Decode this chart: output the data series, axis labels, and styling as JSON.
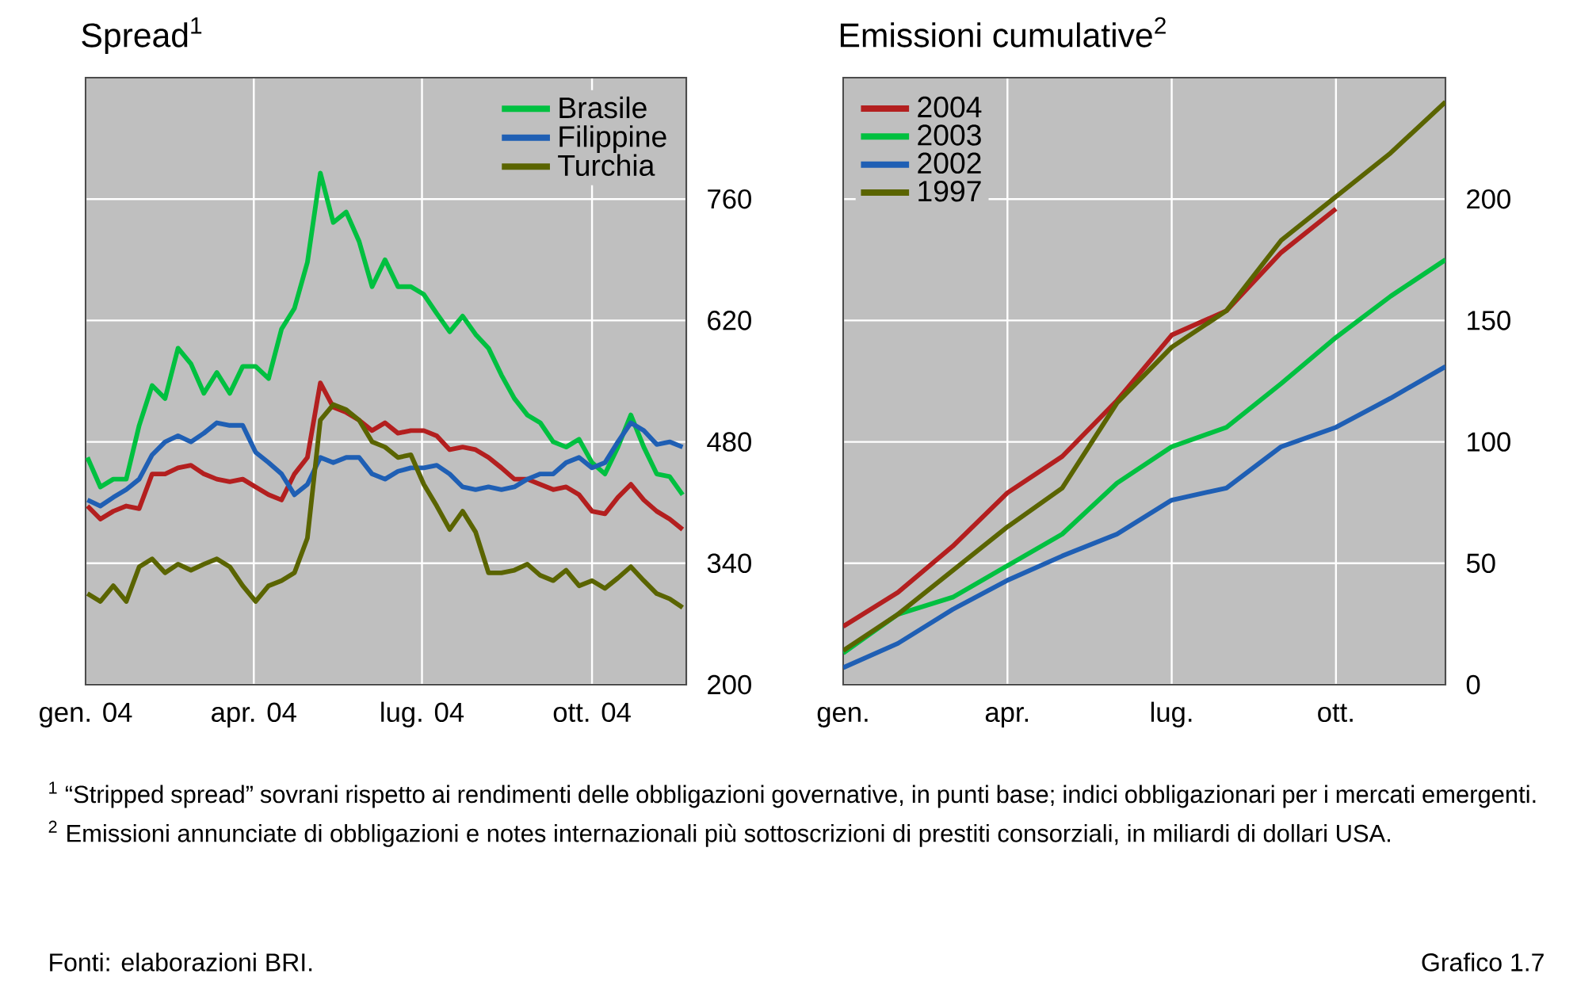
{
  "chart_data": [
    {
      "type": "line",
      "title": "Spread$^{1}$",
      "x": [
        "2004-01-02",
        "2004-01-09",
        "2004-01-16",
        "2004-01-23",
        "2004-01-30",
        "2004-02-06",
        "2004-02-13",
        "2004-02-20",
        "2004-02-27",
        "2004-03-05",
        "2004-03-12",
        "2004-03-19",
        "2004-03-26",
        "2004-04-02",
        "2004-04-09",
        "2004-04-16",
        "2004-04-23",
        "2004-04-30",
        "2004-05-07",
        "2004-05-14",
        "2004-05-21",
        "2004-05-28",
        "2004-06-04",
        "2004-06-11",
        "2004-06-18",
        "2004-06-25",
        "2004-07-02",
        "2004-07-09",
        "2004-07-16",
        "2004-07-23",
        "2004-07-30",
        "2004-08-06",
        "2004-08-13",
        "2004-08-20",
        "2004-08-27",
        "2004-09-03",
        "2004-09-10",
        "2004-09-17",
        "2004-09-24",
        "2004-10-01",
        "2004-10-08",
        "2004-10-15",
        "2004-10-22",
        "2004-10-29",
        "2004-11-05",
        "2004-11-12",
        "2004-11-19"
      ],
      "series": [
        {
          "color": "#b31f1f",
          "values": [
            406,
            391,
            400,
            406,
            403,
            443,
            443,
            450,
            453,
            443,
            437,
            434,
            437,
            428,
            419,
            413,
            443,
            462,
            548,
            520,
            514,
            505,
            493,
            502,
            490,
            493,
            493,
            487,
            471,
            474,
            471,
            462,
            450,
            437,
            437,
            431,
            425,
            428,
            419,
            400,
            397,
            416,
            431,
            413,
            400,
            391,
            379
          ]
        },
        {
          "name": "Brasile",
          "color": "#00c040",
          "values": [
            462,
            428,
            437,
            437,
            499,
            545,
            530,
            588,
            570,
            536,
            560,
            536,
            567,
            567,
            553,
            610,
            634,
            687,
            790,
            733,
            745,
            711,
            659,
            690,
            659,
            659,
            650,
            628,
            607,
            625,
            604,
            588,
            557,
            530,
            511,
            502,
            480,
            474,
            483,
            456,
            443,
            474,
            511,
            474,
            443,
            440,
            419
          ]
        },
        {
          "name": "Filippine",
          "color": "#1f5fb4",
          "values": [
            413,
            406,
            416,
            425,
            437,
            465,
            480,
            487,
            480,
            490,
            502,
            499,
            499,
            468,
            456,
            443,
            419,
            431,
            462,
            456,
            462,
            462,
            443,
            437,
            446,
            450,
            450,
            453,
            443,
            428,
            425,
            428,
            425,
            428,
            437,
            443,
            443,
            456,
            462,
            450,
            456,
            480,
            502,
            493,
            477,
            480,
            474
          ]
        },
        {
          "name": "Turchia",
          "color": "#5a6400",
          "values": [
            305,
            296,
            314,
            296,
            336,
            345,
            329,
            339,
            332,
            339,
            345,
            336,
            314,
            296,
            314,
            320,
            329,
            369,
            505,
            523,
            517,
            505,
            480,
            474,
            462,
            465,
            431,
            406,
            379,
            400,
            376,
            329,
            329,
            332,
            339,
            326,
            320,
            332,
            314,
            320,
            311,
            323,
            336,
            320,
            305,
            299,
            289
          ]
        }
      ],
      "xlim": [
        "2004-01-01",
        "2004-11-21"
      ],
      "xticks": [
        {
          "value": "2004-01-01",
          "label": "gen. 04"
        },
        {
          "value": "2004-04-01",
          "label": "apr. 04"
        },
        {
          "value": "2004-07-01",
          "label": "lug. 04"
        },
        {
          "value": "2004-10-01",
          "label": "ott. 04"
        }
      ],
      "ylim": [
        200,
        900
      ],
      "yticks": [
        200,
        340,
        480,
        620,
        760
      ],
      "grid": true,
      "legend": "top right"
    },
    {
      "type": "line",
      "title": "Emissioni cumulative$^{2}$",
      "categories": [
        "gen.",
        null,
        null,
        "apr.",
        null,
        null,
        "lug.",
        null,
        null,
        "ott.",
        null,
        null
      ],
      "series": [
        {
          "name": "2004",
          "color": "#b31f1f",
          "values": [
            24,
            38,
            57,
            79,
            94,
            117,
            144,
            154,
            178,
            196,
            null,
            null
          ]
        },
        {
          "name": "2003",
          "color": "#00c040",
          "values": [
            13,
            29,
            36,
            49,
            62,
            83,
            98,
            106,
            124,
            143,
            160,
            175
          ]
        },
        {
          "name": "2002",
          "color": "#1f5fb4",
          "values": [
            7,
            17,
            31,
            43,
            53,
            62,
            76,
            81,
            98,
            106,
            118,
            131
          ]
        },
        {
          "name": "1997",
          "color": "#5a6400",
          "values": [
            14,
            29,
            47,
            65,
            81,
            116,
            139,
            154,
            183,
            201,
            219,
            240
          ]
        }
      ],
      "ylim": [
        0,
        250
      ],
      "yticks": [
        0,
        50,
        100,
        150,
        200
      ],
      "grid": true,
      "legend": "top left",
      "annotations": [
        "$^{1}$ “Stripped spread” sovrani rispetto ai rendimenti delle obbligazioni governative, in punti base; indici obbligazionari per i mercati emergenti. $^{2}$ Emissioni annunciate di obbligazioni e notes internazionali più sottoscrizioni di prestiti consorziali, in miliardi di dollari USA.",
        "Fonti: elaborazioni BRI.",
        "Grafico 1.7"
      ]
    }
  ]
}
